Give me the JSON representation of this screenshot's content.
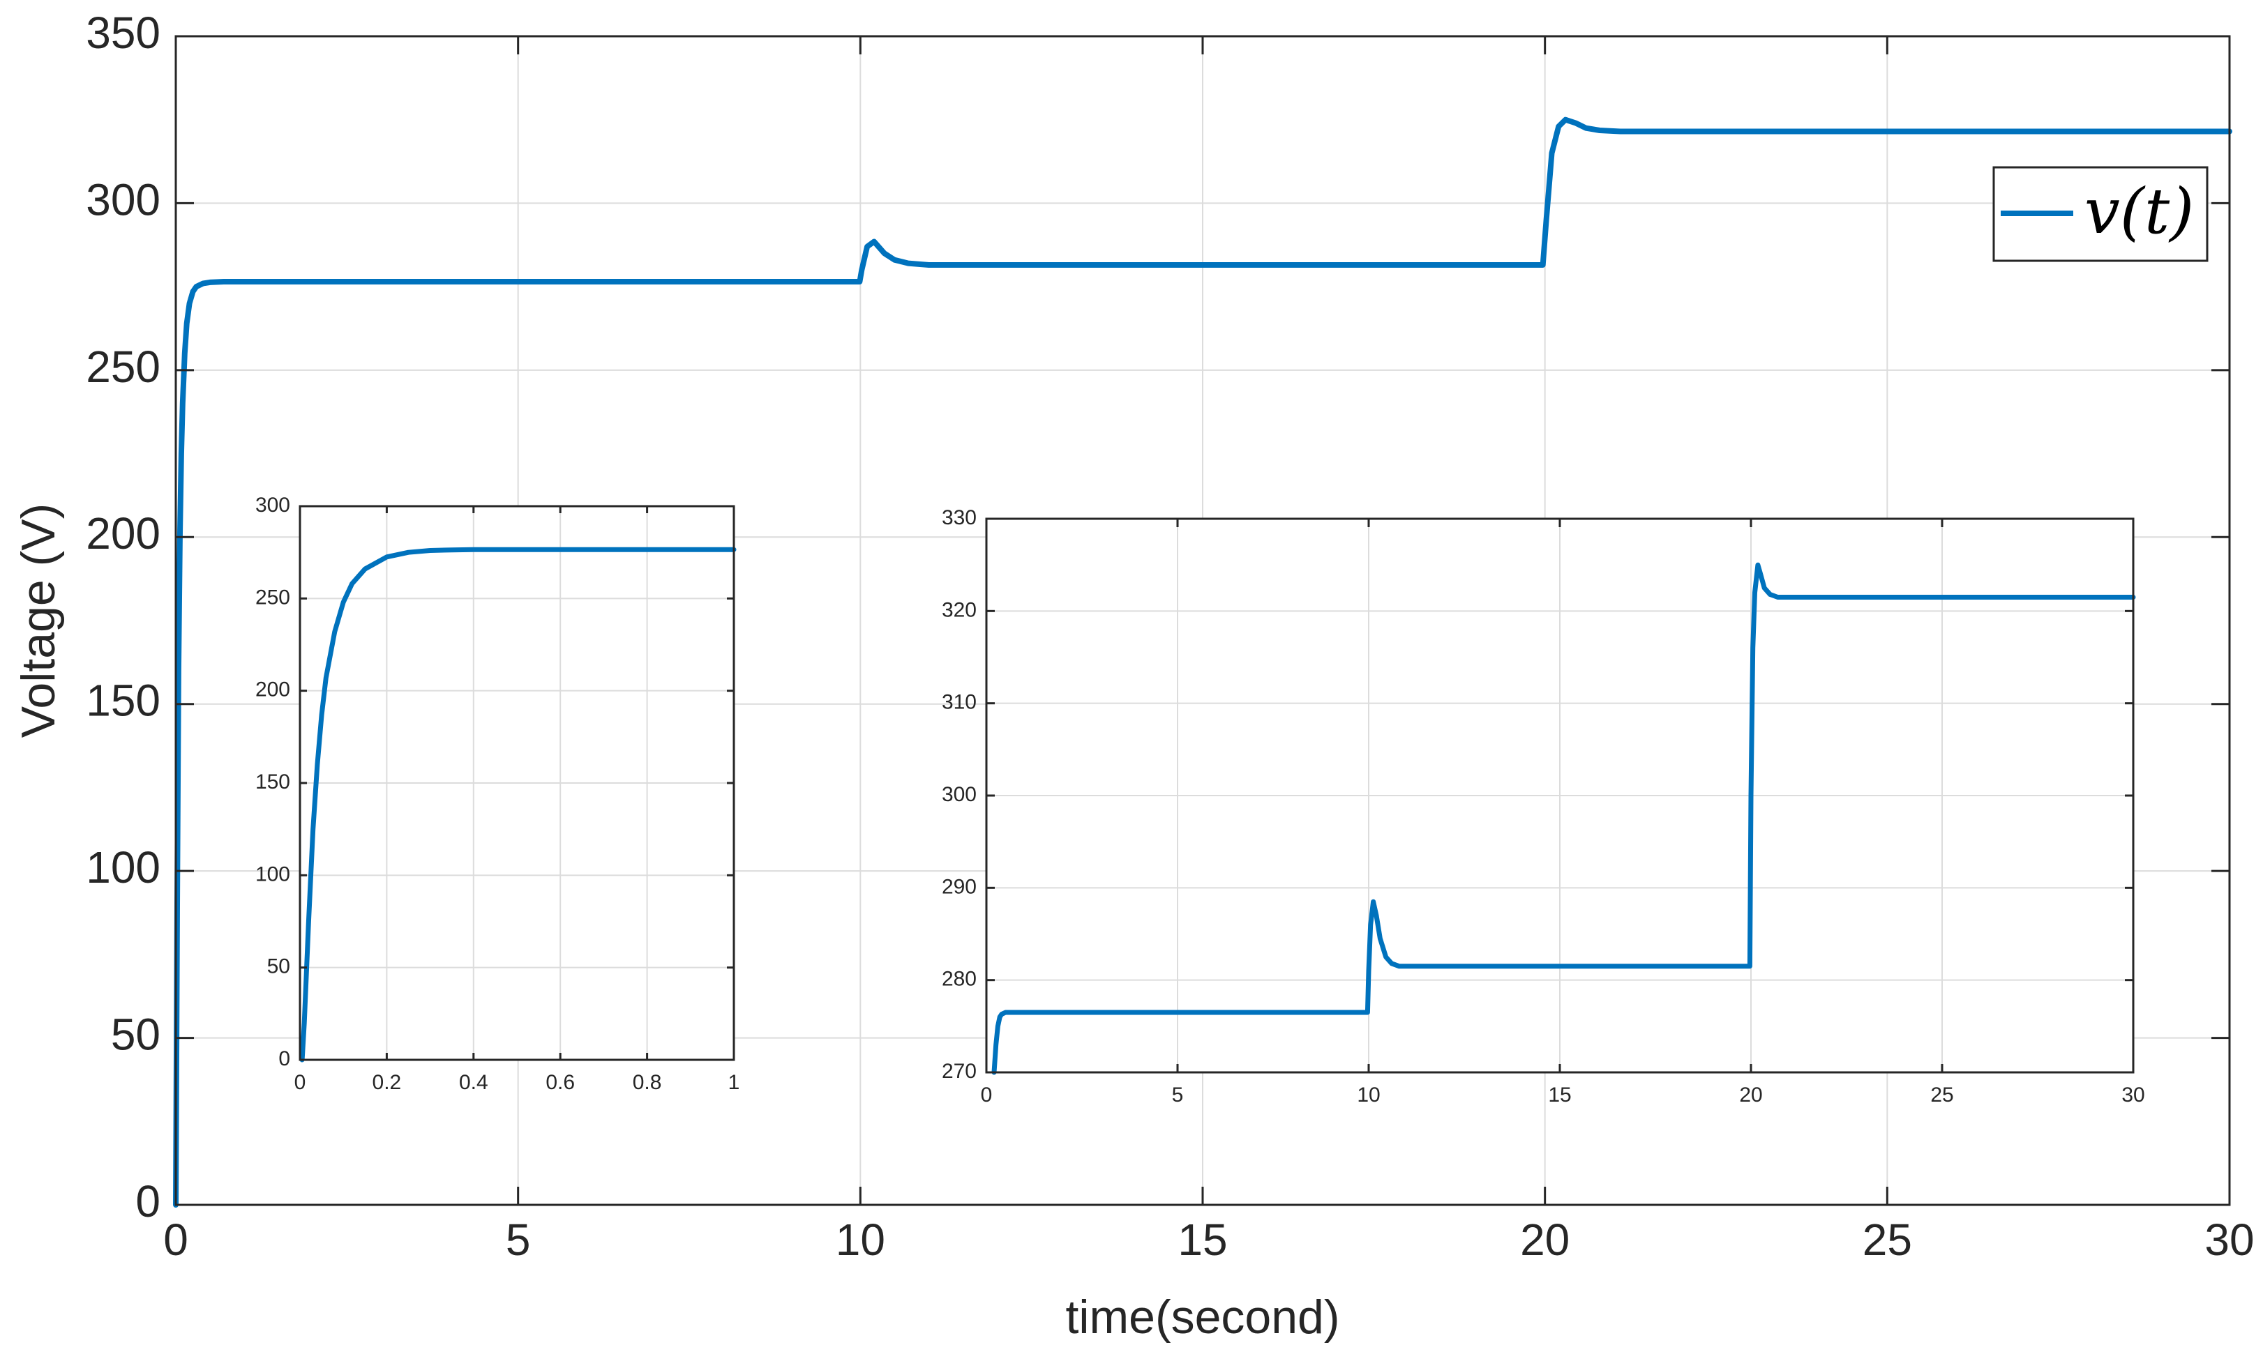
{
  "chart_data": [
    {
      "id": "main",
      "type": "line",
      "xlabel": "time(second)",
      "ylabel": "Voltage (V)",
      "xlim": [
        0,
        30
      ],
      "ylim": [
        0,
        350
      ],
      "xticks": [
        0,
        5,
        10,
        15,
        20,
        25,
        30
      ],
      "yticks": [
        0,
        50,
        100,
        150,
        200,
        250,
        300,
        350
      ],
      "grid": true,
      "legend": {
        "position": "top-right",
        "entries": [
          "v(t)"
        ]
      },
      "series": [
        {
          "name": "v(t)",
          "color": "#0072BD",
          "x": [
            0,
            0.02,
            0.04,
            0.06,
            0.08,
            0.1,
            0.13,
            0.16,
            0.2,
            0.25,
            0.3,
            0.4,
            0.5,
            0.7,
            1,
            5,
            9.99,
            10.02,
            10.1,
            10.2,
            10.35,
            10.5,
            10.7,
            11,
            12,
            15,
            19.97,
            20.02,
            20.1,
            20.2,
            20.3,
            20.45,
            20.6,
            20.8,
            21.1,
            22,
            25,
            30
          ],
          "y": [
            0,
            90,
            160,
            200,
            225,
            240,
            255,
            264,
            270,
            273.5,
            275,
            276,
            276.3,
            276.5,
            276.5,
            276.5,
            276.5,
            280,
            287,
            288.5,
            285,
            283,
            282,
            281.5,
            281.5,
            281.5,
            281.5,
            295,
            315,
            323,
            325,
            324,
            322.5,
            321.8,
            321.5,
            321.5,
            321.5,
            321.5
          ]
        }
      ]
    },
    {
      "id": "inset-startup",
      "type": "line",
      "xlim": [
        0,
        1
      ],
      "ylim": [
        0,
        300
      ],
      "xticks": [
        0,
        0.2,
        0.4,
        0.6,
        0.8,
        1
      ],
      "yticks": [
        0,
        50,
        100,
        150,
        200,
        250,
        300
      ],
      "grid": true,
      "series": [
        {
          "color": "#0072BD",
          "x": [
            0.005,
            0.01,
            0.02,
            0.03,
            0.04,
            0.05,
            0.06,
            0.08,
            0.1,
            0.12,
            0.15,
            0.2,
            0.25,
            0.3,
            0.35,
            0.4,
            0.5,
            0.6,
            0.8,
            1
          ],
          "y": [
            0,
            20,
            75,
            125,
            160,
            187,
            207,
            232,
            248,
            258,
            266,
            272.5,
            275,
            276,
            276.3,
            276.5,
            276.5,
            276.5,
            276.5,
            276.5
          ]
        }
      ]
    },
    {
      "id": "inset-zoom",
      "type": "line",
      "xlim": [
        0,
        30
      ],
      "ylim": [
        270,
        330
      ],
      "xticks": [
        0,
        5,
        10,
        15,
        20,
        25,
        30
      ],
      "yticks": [
        270,
        280,
        290,
        300,
        310,
        320,
        330
      ],
      "grid": true,
      "series": [
        {
          "color": "#0072BD",
          "x": [
            0.2,
            0.25,
            0.3,
            0.35,
            0.4,
            0.5,
            1,
            5,
            9.97,
            10.0,
            10.05,
            10.12,
            10.2,
            10.3,
            10.45,
            10.6,
            10.8,
            11,
            12,
            15,
            19.97,
            20.0,
            20.05,
            20.1,
            20.18,
            20.25,
            20.35,
            20.5,
            20.7,
            21,
            22,
            25,
            30
          ],
          "y": [
            270,
            273,
            275,
            276,
            276.3,
            276.5,
            276.5,
            276.5,
            276.5,
            281,
            286,
            288.5,
            287,
            284.5,
            282.5,
            281.8,
            281.5,
            281.5,
            281.5,
            281.5,
            281.5,
            300,
            316,
            322,
            325,
            324,
            322.5,
            321.8,
            321.5,
            321.5,
            321.5,
            321.5,
            321.5
          ]
        }
      ]
    }
  ]
}
